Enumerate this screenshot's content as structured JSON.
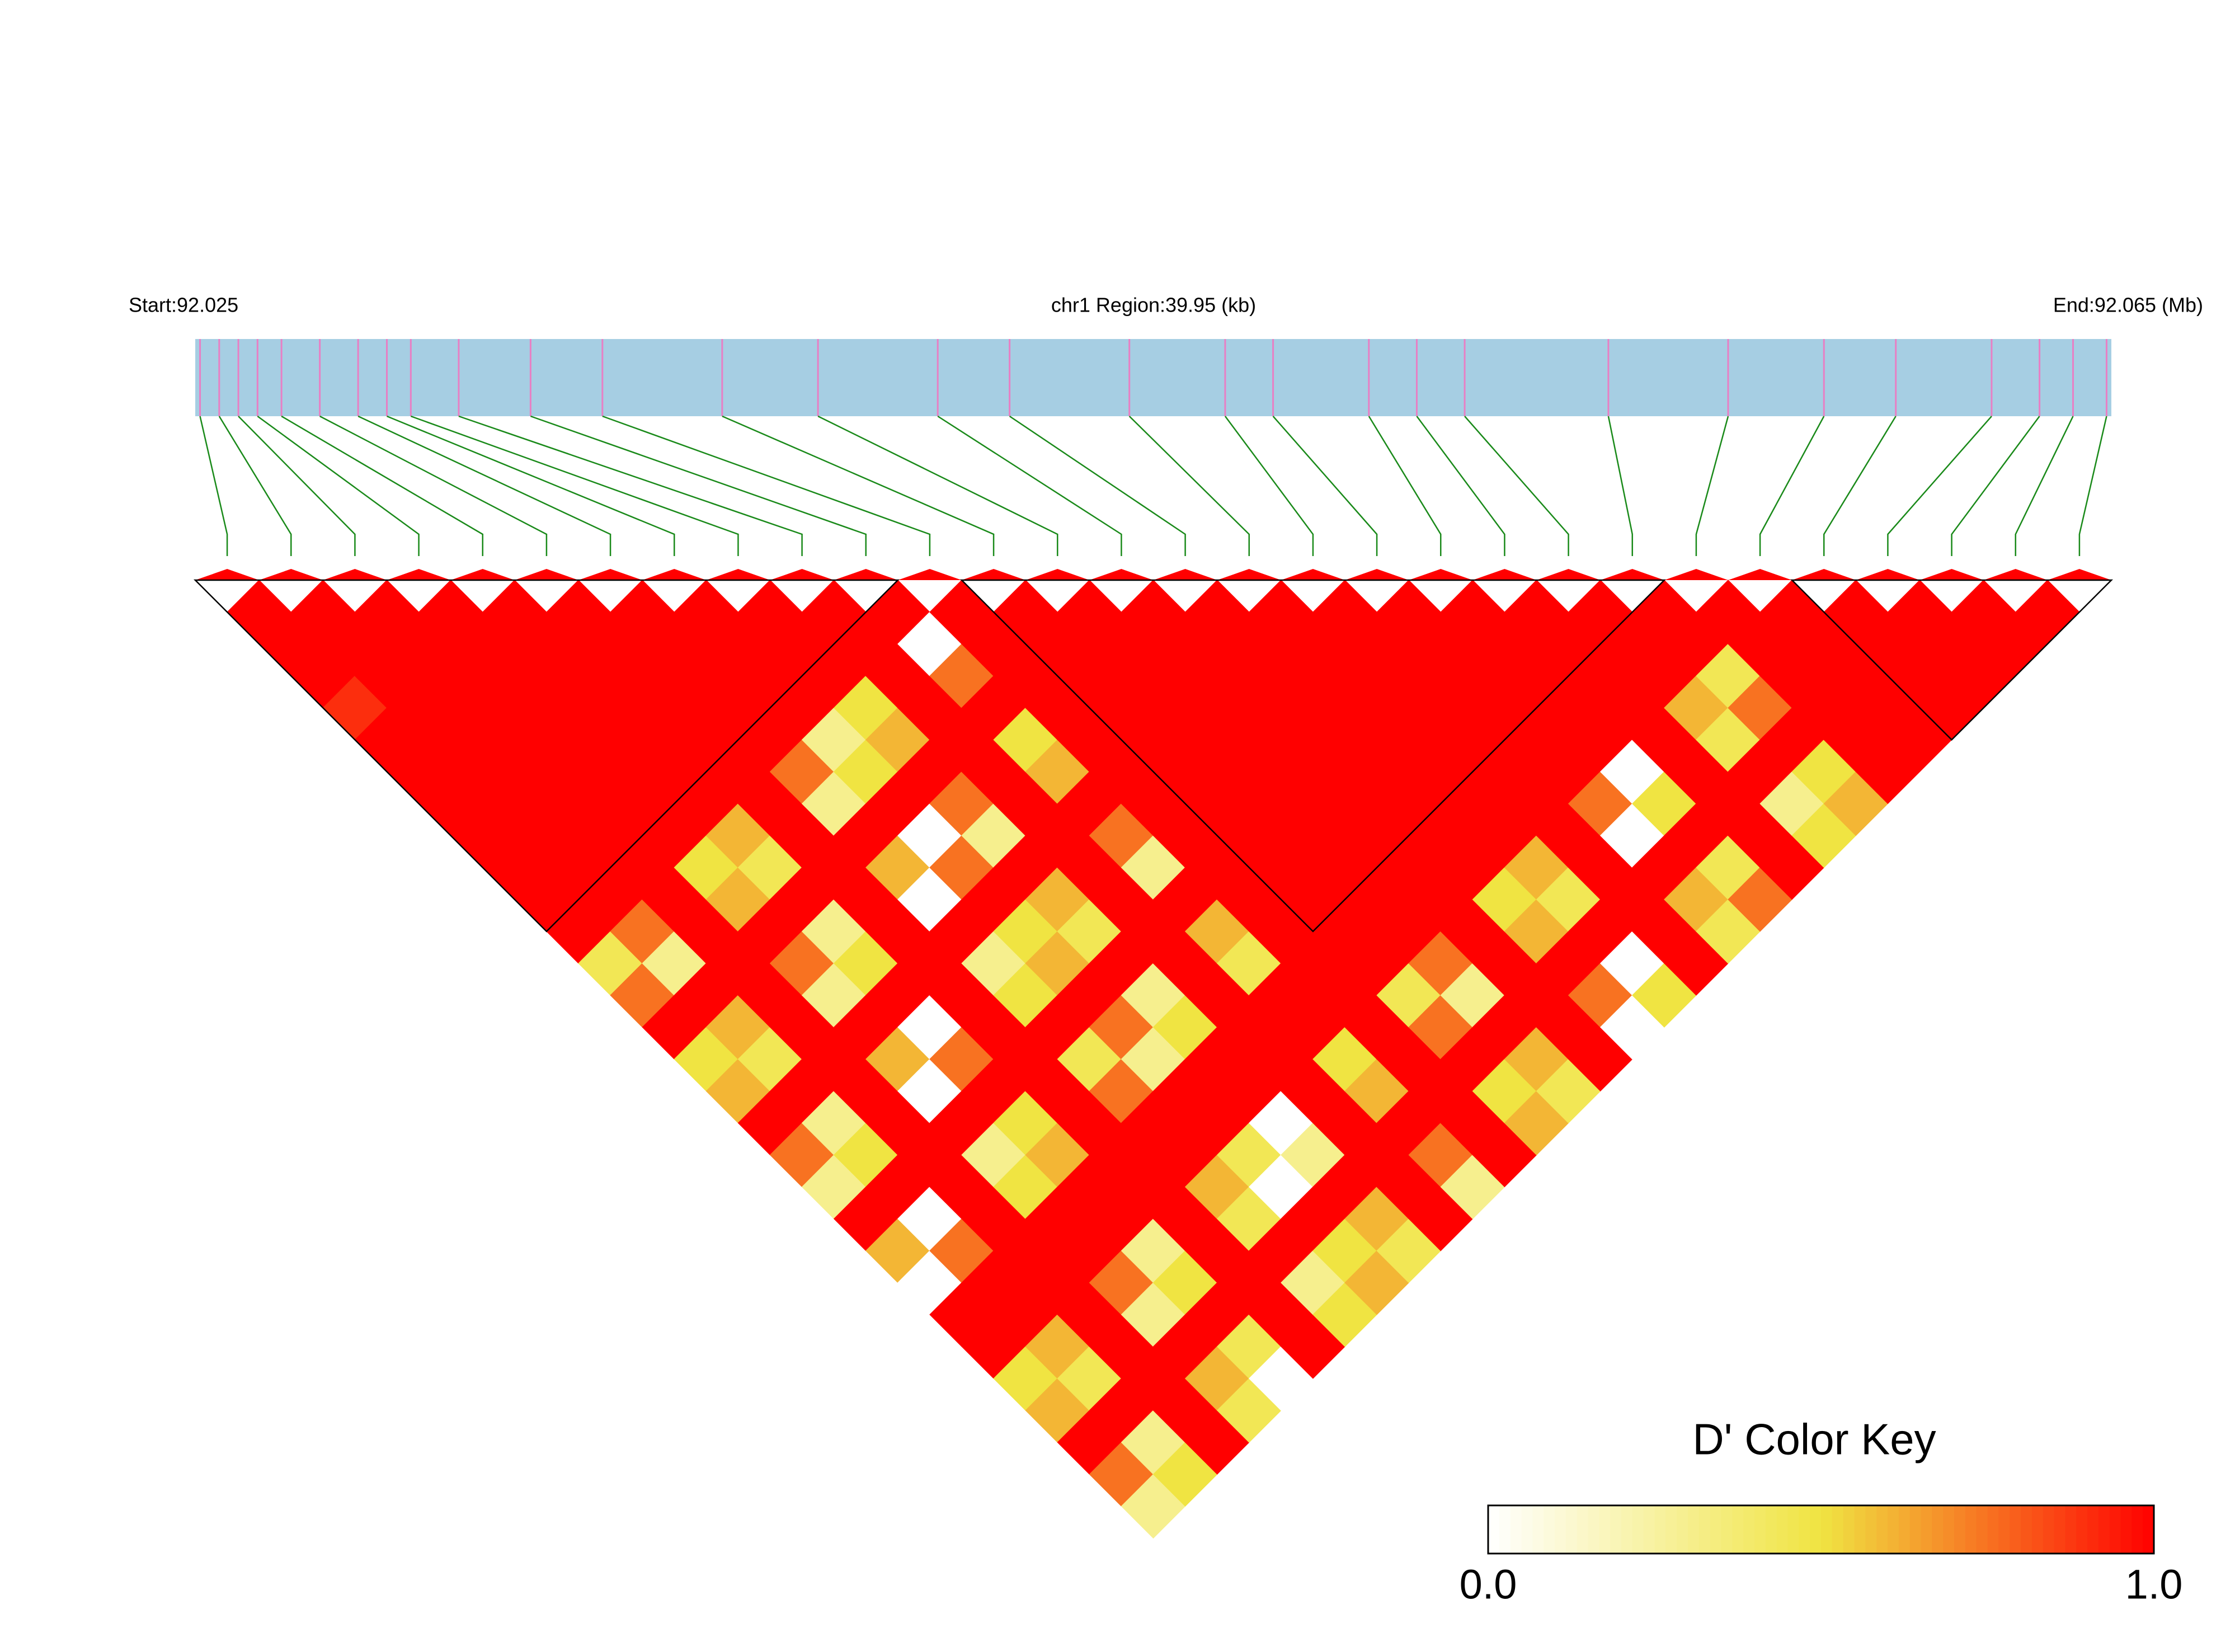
{
  "chart_data": {
    "type": "ld_heatmap",
    "start_label": "Start:92.025",
    "region_label": "chr1 Region:39.95 (kb)",
    "end_label": "End:92.065 (Mb)",
    "key_title": "D' Color Key",
    "key_ticks": [
      {
        "value": 0,
        "label": "0.0"
      },
      {
        "value": 1,
        "label": "1.0"
      }
    ],
    "colors": [
      "#ffffff",
      "#f0e442",
      "#ff0000"
    ],
    "xlim": [
      92.025,
      92.065
    ],
    "snp_positions": [
      92.0251,
      92.0255,
      92.0259,
      92.0263,
      92.0268,
      92.0276,
      92.0284,
      92.029,
      92.0295,
      92.0305,
      92.032,
      92.0335,
      92.036,
      92.038,
      92.0405,
      92.042,
      92.0445,
      92.0465,
      92.0475,
      92.0495,
      92.0505,
      92.0515,
      92.0545,
      92.057,
      92.059,
      92.0605,
      92.0625,
      92.0635,
      92.0642,
      92.0649
    ],
    "blocks": [
      [
        0,
        10
      ],
      [
        12,
        22
      ],
      [
        25,
        29
      ]
    ],
    "ld_matrix": [
      [
        1,
        1,
        1,
        0.9,
        1,
        1,
        1,
        1,
        1,
        1,
        1,
        0.45,
        0.75,
        1,
        0.5,
        0.6,
        1,
        0.75,
        0.3,
        1,
        0.6,
        0,
        1,
        1,
        0.5,
        0.6,
        1,
        0.75,
        0.3
      ],
      [
        1,
        1,
        1,
        1,
        1,
        1,
        1,
        1,
        1,
        1,
        0.75,
        0.3,
        1,
        0.6,
        0.45,
        1,
        0.3,
        0.5,
        1,
        0,
        0.75,
        1,
        1,
        0.6,
        0.45,
        1,
        0.3,
        0.5
      ],
      [
        1,
        1,
        1,
        1,
        1,
        1,
        1,
        1,
        1,
        1,
        1,
        1,
        1,
        1,
        1,
        1,
        1,
        1,
        1,
        1,
        1,
        1,
        1,
        1,
        1,
        1,
        1
      ],
      [
        1,
        1,
        1,
        1,
        1,
        1,
        1,
        1,
        0.5,
        0.6,
        1,
        0.75,
        0.3,
        1,
        0.6,
        0,
        1,
        0.3,
        0.5,
        1,
        1,
        0.75,
        0.3,
        1,
        0.6,
        0.45
      ],
      [
        1,
        1,
        1,
        1,
        1,
        1,
        1,
        0.6,
        0.45,
        1,
        0.3,
        0.5,
        1,
        0,
        0.75,
        1,
        0.5,
        0.6,
        1,
        1,
        0.3,
        0.5,
        1,
        0.45,
        0
      ],
      [
        1,
        1,
        1,
        1,
        1,
        1,
        1,
        1,
        1,
        1,
        1,
        1,
        1,
        1,
        1,
        1,
        1,
        1,
        1,
        1,
        1,
        1,
        1,
        1
      ],
      [
        1,
        1,
        1,
        1,
        1,
        0.75,
        0.3,
        1,
        0.6,
        0,
        1,
        0.3,
        0.5,
        1,
        0.45,
        0.75,
        1,
        1,
        0.6,
        0.45,
        1,
        0.3,
        0.5
      ],
      [
        1,
        1,
        1,
        1,
        0.3,
        0.5,
        1,
        0,
        0.75,
        1,
        0.5,
        0.6,
        1,
        0.75,
        0.3,
        1,
        1,
        0.45,
        0,
        1,
        0.5,
        0.6
      ],
      [
        1,
        1,
        1,
        0.5,
        0.6,
        1,
        0.75,
        0.3,
        1,
        0.6,
        0.45,
        1,
        0.3,
        0.5,
        1,
        1,
        0,
        0.3,
        1,
        0.6,
        0.45
      ],
      [
        1,
        1,
        1,
        1,
        1,
        1,
        1,
        1,
        1,
        1,
        1,
        1,
        1,
        1,
        1,
        1,
        1,
        1,
        1,
        1
      ],
      [
        1,
        0,
        0.75,
        1,
        0.5,
        0.6,
        1,
        0.75,
        0.3,
        1,
        0.6,
        0.45,
        1,
        1,
        0.5,
        0.6,
        1,
        0.75,
        0.3
      ],
      [
        1,
        1,
        1,
        1,
        1,
        1,
        1,
        1,
        1,
        1,
        1,
        1,
        1,
        1,
        1,
        1,
        1,
        1
      ],
      [
        1,
        1,
        1,
        1,
        1,
        1,
        1,
        1,
        1,
        1,
        1,
        1,
        0.45,
        0.75,
        1,
        0.5,
        0.6
      ],
      [
        1,
        1,
        1,
        1,
        1,
        1,
        1,
        1,
        1,
        1,
        1,
        0.75,
        0.3,
        1,
        0.6,
        0.45
      ],
      [
        1,
        1,
        1,
        1,
        1,
        1,
        1,
        1,
        1,
        1,
        1,
        1,
        1,
        1,
        1
      ],
      [
        1,
        1,
        1,
        1,
        1,
        1,
        1,
        1,
        1,
        0.5,
        0.6,
        1,
        0.75,
        0
      ],
      [
        1,
        1,
        1,
        1,
        1,
        1,
        1,
        1,
        0.6,
        0.45,
        1,
        0,
        0.5
      ],
      [
        1,
        1,
        1,
        1,
        1,
        1,
        1,
        1,
        1,
        1,
        1,
        1
      ],
      [
        1,
        1,
        1,
        1,
        1,
        1,
        0.75,
        0,
        1,
        0.6,
        0.45
      ],
      [
        1,
        1,
        1,
        1,
        1,
        0,
        0.5,
        1,
        0.45,
        0.75
      ],
      [
        1,
        1,
        1,
        1,
        1,
        1,
        1,
        1,
        1
      ],
      [
        1,
        1,
        1,
        0.6,
        0.45,
        1,
        0.3,
        0.5
      ],
      [
        1,
        1,
        0.45,
        0.75,
        1,
        0.5,
        0.6
      ],
      [
        1,
        1,
        1,
        1,
        1,
        1
      ],
      [
        1,
        1,
        1,
        1,
        1
      ],
      [
        1,
        1,
        1,
        1
      ],
      [
        1,
        1,
        1
      ],
      [
        1,
        1
      ],
      [
        1
      ]
    ]
  }
}
